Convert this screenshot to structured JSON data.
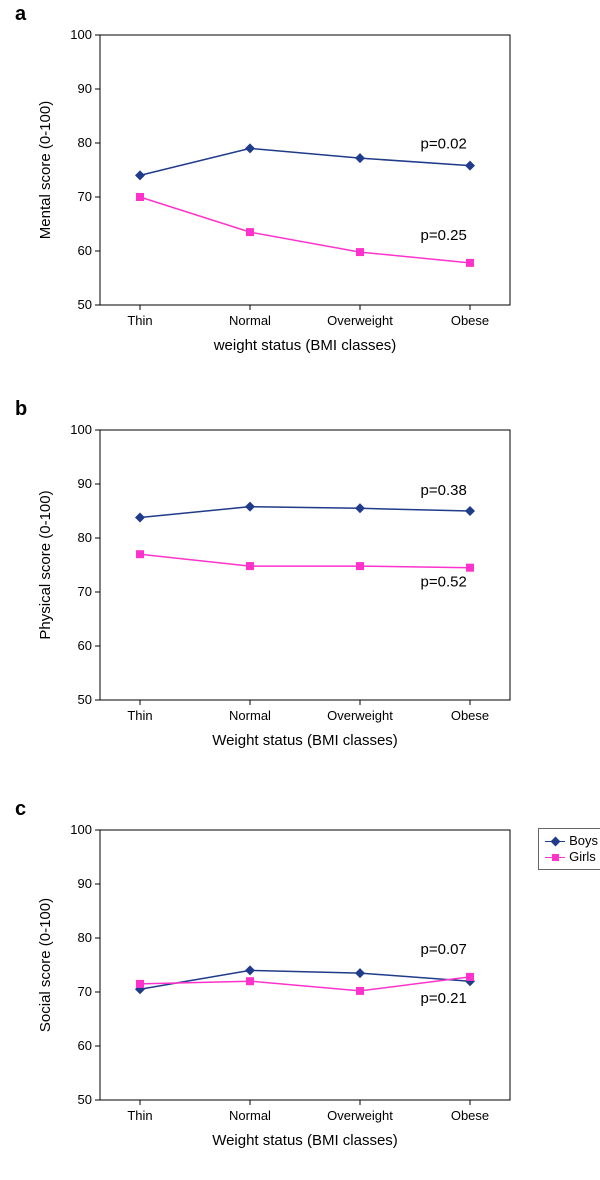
{
  "figure_width": 600,
  "figure_height": 1180,
  "background_color": "#ffffff",
  "categories": [
    "Thin",
    "Normal",
    "Overweight",
    "Obese"
  ],
  "y_axis": {
    "min": 50,
    "max": 100,
    "tick_step": 10
  },
  "series_style": {
    "boys": {
      "color": "#1f3b8a",
      "marker": "diamond",
      "marker_size": 5,
      "line_width": 1.5
    },
    "girls": {
      "color": "#ff33cc",
      "marker": "square",
      "marker_size": 5,
      "line_width": 1.5
    }
  },
  "font": {
    "family": "Arial",
    "axis_title_size": 15,
    "tick_label_size": 13,
    "panel_label_size": 20,
    "annotation_size": 15,
    "legend_size": 13
  },
  "panels": [
    {
      "id": "a",
      "label": "a",
      "y_label": "Mental score (0-100)",
      "x_label": "weight status (BMI classes)",
      "boys": {
        "values": [
          74,
          79,
          77.2,
          75.8
        ],
        "p_value": "p=0.02",
        "p_pos": {
          "xi": 2.55,
          "y": 79
        }
      },
      "girls": {
        "values": [
          70,
          63.5,
          59.8,
          57.8
        ],
        "p_value": "p=0.25",
        "p_pos": {
          "xi": 2.55,
          "y": 62
        }
      }
    },
    {
      "id": "b",
      "label": "b",
      "y_label": "Physical score (0-100)",
      "x_label": "Weight status (BMI classes)",
      "boys": {
        "values": [
          83.8,
          85.8,
          85.5,
          85
        ],
        "p_value": "p=0.38",
        "p_pos": {
          "xi": 2.55,
          "y": 88
        }
      },
      "girls": {
        "values": [
          77,
          74.8,
          74.8,
          74.5
        ],
        "p_value": "p=0.52",
        "p_pos": {
          "xi": 2.55,
          "y": 71
        }
      }
    },
    {
      "id": "c",
      "label": "c",
      "y_label": "Social score (0-100)",
      "x_label": "Weight status (BMI classes)",
      "boys": {
        "values": [
          70.5,
          74,
          73.5,
          72
        ],
        "p_value": "p=0.07",
        "p_pos": {
          "xi": 2.55,
          "y": 77
        }
      },
      "girls": {
        "values": [
          71.5,
          72,
          70.2,
          72.8
        ],
        "p_value": "p=0.21",
        "p_pos": {
          "xi": 2.55,
          "y": 68
        }
      }
    }
  ],
  "legend": {
    "panel": "c",
    "items": [
      {
        "label": "Boys",
        "series": "boys"
      },
      {
        "label": "Girls",
        "series": "girls"
      }
    ]
  }
}
